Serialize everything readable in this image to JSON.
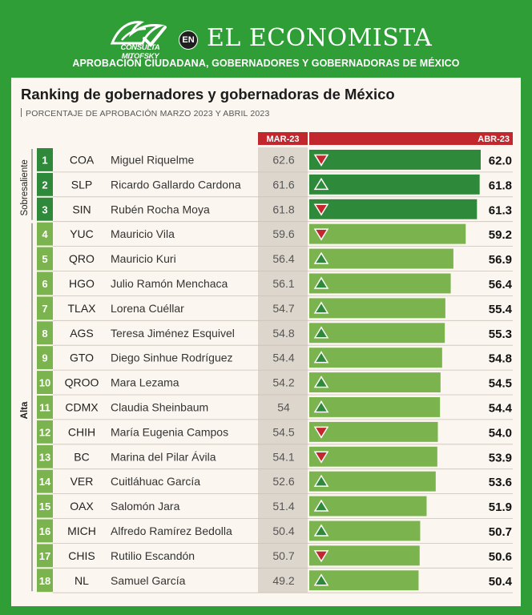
{
  "header": {
    "logo_text": "CONSULTA MITOFSKY",
    "en_badge": "EN",
    "brand": "EL ECONOMISTA",
    "subtitle": "APROBACIÓN CIUDADANA, GOBERNADORES Y GOBERNADORAS DE MÉXICO"
  },
  "colors": {
    "brand_green": "#2f9e36",
    "dark_bar": "#2e8a3a",
    "light_bar": "#7bb44e",
    "header_red": "#c1272d",
    "down_red": "#c1272d",
    "up_green": "#2e8a3a"
  },
  "chart_data": {
    "type": "bar",
    "title": "Ranking de gobernadores y gobernadoras de México",
    "subtitle": "PORCENTAJE DE APROBACIÓN MARZO 2023 Y ABRIL 2023",
    "column_labels": {
      "previous": "MAR-23",
      "current": "ABR-23"
    },
    "groups": [
      {
        "label": "Sobresaliente",
        "from_rank": 1,
        "to_rank": 3
      },
      {
        "label": "Alta",
        "from_rank": 4,
        "to_rank": 18
      }
    ],
    "rows": [
      {
        "rank": "1",
        "state": "COA",
        "name": "Miguel Riquelme",
        "mar": "62.6",
        "abr": "62.0",
        "trend": "down"
      },
      {
        "rank": "2",
        "state": "SLP",
        "name": "Ricardo Gallardo Cardona",
        "mar": "61.6",
        "abr": "61.8",
        "trend": "up"
      },
      {
        "rank": "3",
        "state": "SIN",
        "name": "Rubén Rocha Moya",
        "mar": "61.8",
        "abr": "61.3",
        "trend": "down"
      },
      {
        "rank": "4",
        "state": "YUC",
        "name": "Mauricio Vila",
        "mar": "59.6",
        "abr": "59.2",
        "trend": "down"
      },
      {
        "rank": "5",
        "state": "QRO",
        "name": "Mauricio Kuri",
        "mar": "56.4",
        "abr": "56.9",
        "trend": "up"
      },
      {
        "rank": "6",
        "state": "HGO",
        "name": "Julio Ramón Menchaca",
        "mar": "56.1",
        "abr": "56.4",
        "trend": "up"
      },
      {
        "rank": "7",
        "state": "TLAX",
        "name": "Lorena Cuéllar",
        "mar": "54.7",
        "abr": "55.4",
        "trend": "up"
      },
      {
        "rank": "8",
        "state": "AGS",
        "name": "Teresa Jiménez Esquivel",
        "mar": "54.8",
        "abr": "55.3",
        "trend": "up"
      },
      {
        "rank": "9",
        "state": "GTO",
        "name": "Diego Sinhue Rodríguez",
        "mar": "54.4",
        "abr": "54.8",
        "trend": "up"
      },
      {
        "rank": "10",
        "state": "QROO",
        "name": "Mara Lezama",
        "mar": "54.2",
        "abr": "54.5",
        "trend": "up"
      },
      {
        "rank": "11",
        "state": "CDMX",
        "name": "Claudia Sheinbaum",
        "mar": "54",
        "abr": "54.4",
        "trend": "up"
      },
      {
        "rank": "12",
        "state": "CHIH",
        "name": "María Eugenia Campos",
        "mar": "54.5",
        "abr": "54.0",
        "trend": "down"
      },
      {
        "rank": "13",
        "state": "BC",
        "name": "Marina del Pilar Ávila",
        "mar": "54.1",
        "abr": "53.9",
        "trend": "down"
      },
      {
        "rank": "14",
        "state": "VER",
        "name": "Cuitláhuac García",
        "mar": "52.6",
        "abr": "53.6",
        "trend": "up"
      },
      {
        "rank": "15",
        "state": "OAX",
        "name": "Salomón Jara",
        "mar": "51.4",
        "abr": "51.9",
        "trend": "up"
      },
      {
        "rank": "16",
        "state": "MICH",
        "name": "Alfredo Ramírez Bedolla",
        "mar": "50.4",
        "abr": "50.7",
        "trend": "up"
      },
      {
        "rank": "17",
        "state": "CHIS",
        "name": "Rutilio Escandón",
        "mar": "50.7",
        "abr": "50.6",
        "trend": "down"
      },
      {
        "rank": "18",
        "state": "NL",
        "name": "Samuel García",
        "mar": "49.2",
        "abr": "50.4",
        "trend": "up"
      }
    ]
  }
}
